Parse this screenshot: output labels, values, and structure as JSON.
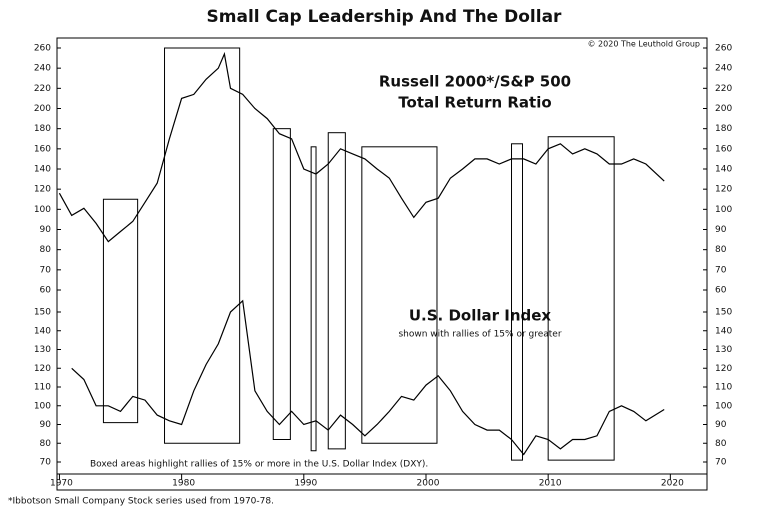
{
  "chart_data": {
    "type": "line",
    "title": "Small Cap Leadership And The Dollar",
    "source": "© 2020 The Leuthold Group",
    "note": "Boxed areas highlight rallies of 15% or more in the U.S. Dollar Index (DXY).",
    "footnote": "*Ibbotson Small Company Stock series used from 1970-78.",
    "xlim": [
      1969.8,
      2023.0
    ],
    "xticks": [
      1970,
      1980,
      1990,
      2000,
      2010,
      2020
    ],
    "series": [
      {
        "name": "Russell 2000*/S&P 500",
        "subtitle": "Total Return Ratio",
        "color": "#000000",
        "ylim": [
          60,
          265
        ],
        "yticks": [
          260,
          240,
          220,
          200,
          180,
          160,
          140,
          120,
          100,
          90,
          80,
          70,
          60
        ],
        "x": [
          1970,
          1971,
          1972,
          1973,
          1974,
          1975,
          1976,
          1977,
          1978,
          1979,
          1980,
          1981,
          1982,
          1983,
          1983.5,
          1984,
          1985,
          1986,
          1987,
          1988,
          1989,
          1990,
          1991,
          1992,
          1993,
          1994,
          1995,
          1996,
          1997,
          1998,
          1999,
          2000,
          2001,
          2002,
          2003,
          2004,
          2005,
          2006,
          2007,
          2008,
          2009,
          2010,
          2011,
          2012,
          2013,
          2014,
          2015,
          2016,
          2017,
          2018,
          2019.5
        ],
        "values": [
          116,
          97,
          101,
          93,
          84,
          89,
          94,
          107,
          126,
          170,
          210,
          214,
          229,
          240,
          254,
          220,
          214,
          200,
          190,
          175,
          170,
          140,
          135,
          145,
          160,
          155,
          150,
          140,
          131,
          111,
          96,
          107,
          111,
          131,
          140,
          150,
          150,
          145,
          150,
          150,
          145,
          160,
          165,
          155,
          160,
          155,
          145,
          145,
          150,
          145,
          128
        ]
      },
      {
        "name": "U.S. Dollar Index",
        "subtitle": "shown with rallies of 15% or greater",
        "color": "#000000",
        "ylim": [
          65,
          160
        ],
        "yticks": [
          150,
          140,
          130,
          120,
          110,
          100,
          90,
          80,
          70
        ],
        "x": [
          1971,
          1972,
          1973,
          1974,
          1975,
          1976,
          1977,
          1978,
          1979,
          1980,
          1981,
          1982,
          1983,
          1984,
          1985,
          1986,
          1987,
          1988,
          1989,
          1990,
          1991,
          1992,
          1993,
          1994,
          1995,
          1996,
          1997,
          1998,
          1999,
          2000,
          2001,
          2002,
          2003,
          2004,
          2005,
          2006,
          2007,
          2008,
          2009,
          2010,
          2011,
          2012,
          2013,
          2014,
          2015,
          2016,
          2017,
          2018,
          2019.5
        ],
        "values": [
          120,
          114,
          100,
          100,
          97,
          105,
          103,
          95,
          92,
          90,
          108,
          122,
          133,
          150,
          156,
          108,
          97,
          90,
          97,
          90,
          92,
          87,
          95,
          90,
          84,
          90,
          97,
          105,
          103,
          111,
          116,
          108,
          97,
          90,
          87,
          87,
          82,
          74,
          84,
          82,
          77,
          82,
          82,
          84,
          97,
          100,
          97,
          92,
          98
        ]
      }
    ],
    "boxes": [
      {
        "start": 1973.6,
        "end": 1976.4,
        "top": 110,
        "bottom": 91
      },
      {
        "start": 1978.6,
        "end": 1984.75,
        "top": 260,
        "bottom": 80
      },
      {
        "start": 1987.5,
        "end": 1988.9,
        "top": 180,
        "bottom": 82
      },
      {
        "start": 1990.6,
        "end": 1991.0,
        "top": 162,
        "bottom": 76
      },
      {
        "start": 1992.0,
        "end": 1993.4,
        "top": 176,
        "bottom": 77
      },
      {
        "start": 1994.75,
        "end": 2000.9,
        "top": 162,
        "bottom": 80
      },
      {
        "start": 2007.0,
        "end": 2007.9,
        "top": 165,
        "bottom": 71
      },
      {
        "start": 2010.0,
        "end": 2015.4,
        "top": 172,
        "bottom": 71
      }
    ]
  }
}
